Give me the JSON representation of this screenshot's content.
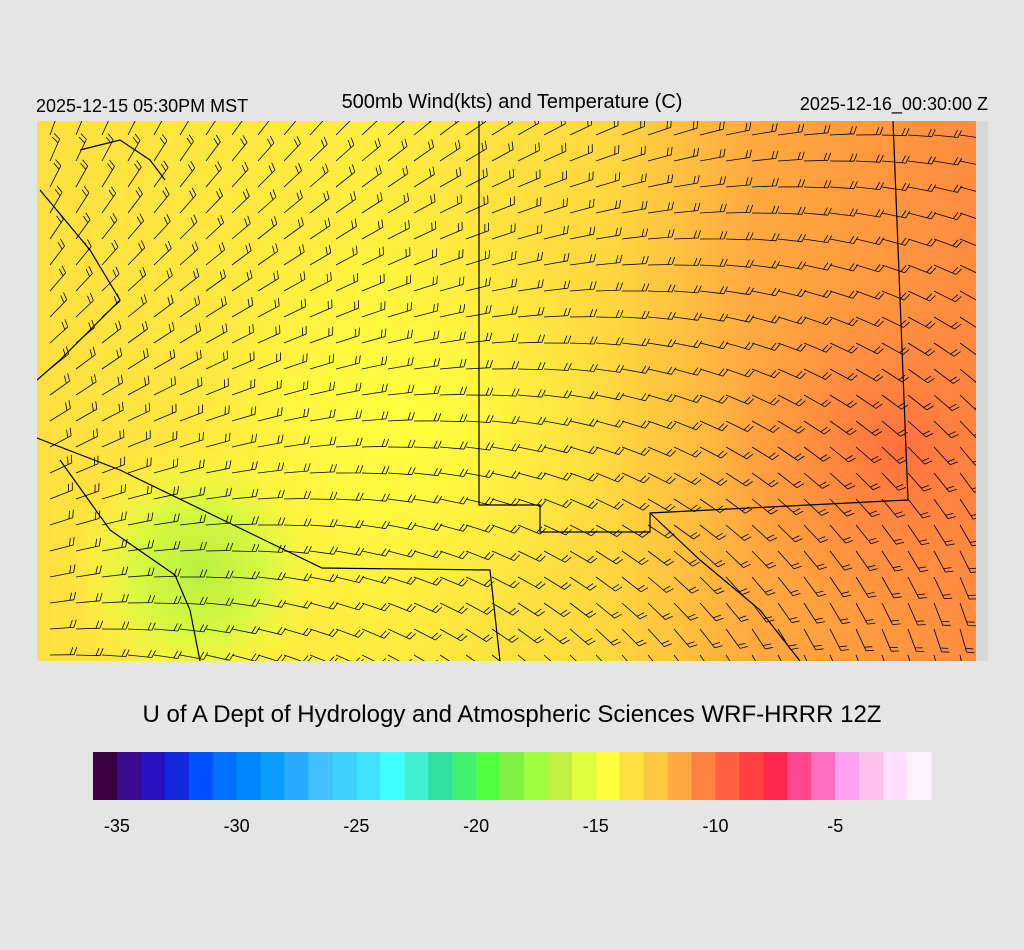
{
  "header": {
    "left": "2025-12-15 05:30PM MST",
    "title": "500mb Wind(kts) and Temperature (C)",
    "right": "2025-12-16_00:30:00 Z"
  },
  "footer": {
    "credit": "U of A Dept of Hydrology and Atmospheric Sciences WRF-HRRR 12Z"
  },
  "colorbar": {
    "lim": [
      -36,
      -1
    ],
    "ticks": [
      -35,
      -30,
      -25,
      -20,
      -15,
      -10,
      -5
    ],
    "colors": [
      "#3a0040",
      "#3a0a90",
      "#2a10c0",
      "#1428e0",
      "#0050ff",
      "#0070ff",
      "#0088ff",
      "#0a9cff",
      "#28aaff",
      "#40c0ff",
      "#40d0ff",
      "#40e0ff",
      "#40ffff",
      "#40f0d0",
      "#30e0a0",
      "#40f070",
      "#50ff40",
      "#80f040",
      "#a0ff40",
      "#c0f040",
      "#e0ff40",
      "#ffff40",
      "#ffe040",
      "#ffc840",
      "#ffa840",
      "#ff8040",
      "#ff6040",
      "#ff4040",
      "#ff2850",
      "#ff4890",
      "#ff70c0",
      "#ffa0f0",
      "#ffc0f0",
      "#ffe0ff",
      "#fff0ff"
    ]
  }
}
